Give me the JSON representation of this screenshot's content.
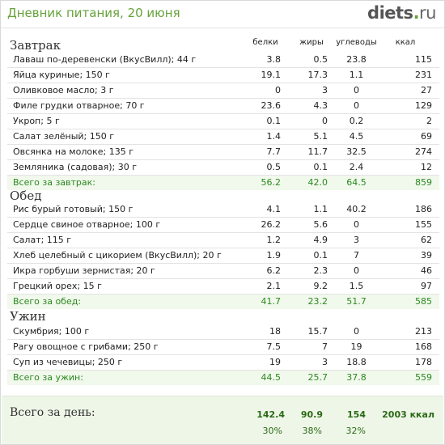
{
  "header": {
    "title": "Дневник питания, 20 июня",
    "logo_main": "diets",
    "logo_dot": ".",
    "logo_tld": "ru"
  },
  "columns": {
    "protein": "белки",
    "fat": "жиры",
    "carbs": "углеводы",
    "kcal": "ккал"
  },
  "sections": [
    {
      "title": "Завтрак",
      "rows": [
        {
          "name": "Лаваш по-деревенски (ВкусВилл); 44 г",
          "p": "3.8",
          "f": "0.5",
          "c": "23.8",
          "k": "115"
        },
        {
          "name": "Яйца куриные; 150 г",
          "p": "19.1",
          "f": "17.3",
          "c": "1.1",
          "k": "231"
        },
        {
          "name": "Оливковое масло; 3 г",
          "p": "0",
          "f": "3",
          "c": "0",
          "k": "27"
        },
        {
          "name": "Филе грудки отварное; 70 г",
          "p": "23.6",
          "f": "4.3",
          "c": "0",
          "k": "129"
        },
        {
          "name": "Укроп; 5 г",
          "p": "0.1",
          "f": "0",
          "c": "0.2",
          "k": "2"
        },
        {
          "name": "Салат зелёный; 150 г",
          "p": "1.4",
          "f": "5.1",
          "c": "4.5",
          "k": "69"
        },
        {
          "name": "Овсянка на молоке; 135 г",
          "p": "7.7",
          "f": "11.7",
          "c": "32.5",
          "k": "274"
        },
        {
          "name": "Земляника (садовая); 30 г",
          "p": "0.5",
          "f": "0.1",
          "c": "2.4",
          "k": "12"
        }
      ],
      "total": {
        "name": "Всего за завтрак:",
        "p": "56.2",
        "f": "42.0",
        "c": "64.5",
        "k": "859"
      }
    },
    {
      "title": "Обед",
      "rows": [
        {
          "name": "Рис бурый готовый; 150 г",
          "p": "4.1",
          "f": "1.1",
          "c": "40.2",
          "k": "186"
        },
        {
          "name": "Сердце свиное отварное; 100 г",
          "p": "26.2",
          "f": "5.6",
          "c": "0",
          "k": "155"
        },
        {
          "name": "Салат; 115 г",
          "p": "1.2",
          "f": "4.9",
          "c": "3",
          "k": "62"
        },
        {
          "name": "Хлеб целебный с цикорием (ВкусВилл); 20 г",
          "p": "1.9",
          "f": "0.1",
          "c": "7",
          "k": "39"
        },
        {
          "name": "Икра горбуши зернистая; 20 г",
          "p": "6.2",
          "f": "2.3",
          "c": "0",
          "k": "46"
        },
        {
          "name": "Грецкий орех; 15 г",
          "p": "2.1",
          "f": "9.2",
          "c": "1.5",
          "k": "97"
        }
      ],
      "total": {
        "name": "Всего за обед:",
        "p": "41.7",
        "f": "23.2",
        "c": "51.7",
        "k": "585"
      }
    },
    {
      "title": "Ужин",
      "rows": [
        {
          "name": "Скумбрия; 100 г",
          "p": "18",
          "f": "15.7",
          "c": "0",
          "k": "213"
        },
        {
          "name": "Рагу овощное с грибами; 250 г",
          "p": "7.5",
          "f": "7",
          "c": "19",
          "k": "168"
        },
        {
          "name": "Суп из чечевицы; 250 г",
          "p": "19",
          "f": "3",
          "c": "18.8",
          "k": "178"
        }
      ],
      "total": {
        "name": "Всего за ужин:",
        "p": "44.5",
        "f": "25.7",
        "c": "37.8",
        "k": "559"
      }
    }
  ],
  "day": {
    "label": "Всего за день:",
    "p": "142.4",
    "f": "90.9",
    "c": "154",
    "k": "2003 ккал",
    "p_pct": "30%",
    "f_pct": "38%",
    "c_pct": "32%"
  }
}
